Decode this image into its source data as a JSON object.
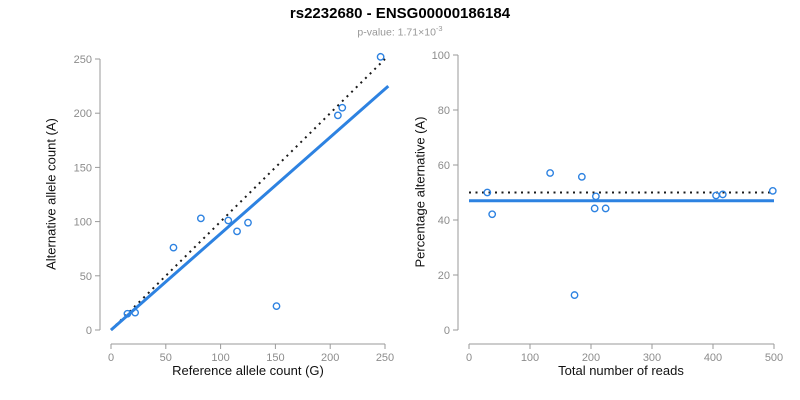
{
  "header": {
    "title": "rs2232680 - ENSG00000186184",
    "subtitle_prefix": "p-value: 1.71×10",
    "subtitle_exponent": "-3"
  },
  "colors": {
    "point_blue": "#2d82e1",
    "line_blue": "#2d82e1",
    "dotted_black": "#1a1a1a",
    "axis_gray": "#9a9a9a",
    "tick_label_gray": "#8c8c8c",
    "axis_title_black": "#111111",
    "subtitle_gray": "#989898"
  },
  "chart_data": [
    {
      "type": "scatter",
      "panel": "left",
      "xlabel": "Reference allele count (G)",
      "ylabel": "Alternative allele count (A)",
      "xlim": [
        0,
        250
      ],
      "ylim": [
        0,
        250
      ],
      "xticks": [
        0,
        50,
        100,
        150,
        200,
        250
      ],
      "yticks": [
        0,
        50,
        100,
        150,
        200,
        250
      ],
      "grid": false,
      "points": [
        [
          15,
          15
        ],
        [
          22,
          16
        ],
        [
          57,
          76
        ],
        [
          82,
          103
        ],
        [
          107,
          101
        ],
        [
          115,
          91
        ],
        [
          125,
          99
        ],
        [
          151,
          22
        ],
        [
          207,
          198
        ],
        [
          211,
          205
        ],
        [
          246,
          252
        ]
      ],
      "lines": [
        {
          "name": "identity-line",
          "dash": "dotted",
          "color": "#1a1a1a",
          "width": 2,
          "from": [
            0,
            0
          ],
          "to": [
            250,
            250
          ]
        },
        {
          "name": "fit-line",
          "dash": "solid",
          "color": "#2d82e1",
          "width": 3,
          "from": [
            0,
            0
          ],
          "to": [
            253,
            225
          ]
        }
      ]
    },
    {
      "type": "scatter",
      "panel": "right",
      "xlabel": "Total number of reads",
      "ylabel": "Percentage alternative (A)",
      "xlim": [
        0,
        500
      ],
      "ylim": [
        0,
        100
      ],
      "xticks": [
        0,
        100,
        200,
        300,
        400,
        500
      ],
      "yticks": [
        0,
        20,
        40,
        60,
        80,
        100
      ],
      "grid": false,
      "points": [
        [
          30,
          50
        ],
        [
          38,
          42.1
        ],
        [
          133,
          57.1
        ],
        [
          185,
          55.7
        ],
        [
          208,
          48.6
        ],
        [
          206,
          44.2
        ],
        [
          224,
          44.2
        ],
        [
          173,
          12.7
        ],
        [
          405,
          48.9
        ],
        [
          416,
          49.3
        ],
        [
          498,
          50.6
        ]
      ],
      "lines": [
        {
          "name": "reference-50pct-line",
          "dash": "dotted",
          "color": "#1a1a1a",
          "width": 2,
          "from": [
            0,
            50
          ],
          "to": [
            500,
            50
          ]
        },
        {
          "name": "fit-line",
          "dash": "solid",
          "color": "#2d82e1",
          "width": 3,
          "from": [
            0,
            47
          ],
          "to": [
            500,
            47
          ]
        }
      ]
    }
  ]
}
